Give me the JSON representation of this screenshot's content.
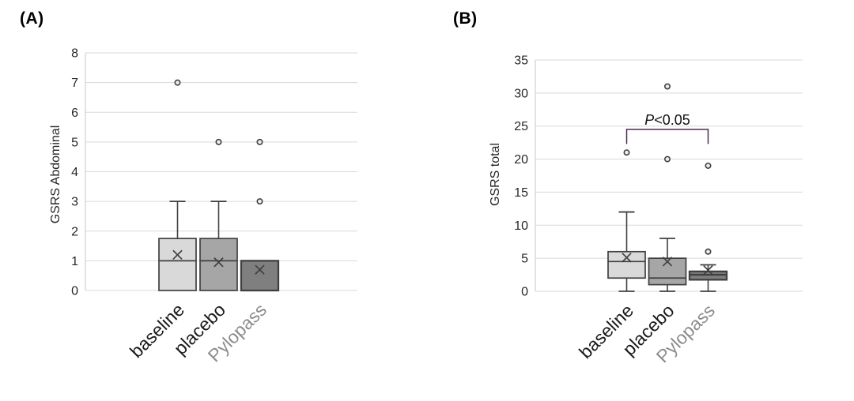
{
  "figure": {
    "background": "#ffffff",
    "description": "Two-panel box plot figure comparing GSRS scores at baseline, after placebo, and after Pylopass"
  },
  "colors": {
    "box_stroke": "#404040",
    "whisker": "#404040",
    "mean_marker": "#404040",
    "outlier_stroke": "#404040",
    "outlier_fill": "#ededed",
    "gridline": "#d9d9d9",
    "axis_line": "#d0d0d0",
    "axis_text": "#262626",
    "annotation_text": "#111111"
  },
  "chart_data": [
    {
      "type": "box",
      "panel_label": "(A)",
      "ylabel": "GSRS Abdominal",
      "ylim": [
        0,
        8
      ],
      "ytick_step": 1,
      "grid": true,
      "legend": null,
      "categories": [
        "baseline",
        "placebo",
        "Pylopass"
      ],
      "category_colors": [
        "#1a1a1a",
        "#1a1a1a",
        "#8c8c8c"
      ],
      "boxes": [
        {
          "category": "baseline",
          "fill": "#d9d9d9",
          "stroke_width": 1.7,
          "q1": 0,
          "median": 1,
          "q3": 1.75,
          "whisker_low": 0,
          "whisker_high": 3,
          "mean": 1.2,
          "outliers": [
            7
          ]
        },
        {
          "category": "placebo",
          "fill": "#a6a6a6",
          "stroke_width": 1.7,
          "q1": 0,
          "median": 1,
          "q3": 1.75,
          "whisker_low": 0,
          "whisker_high": 3,
          "mean": 0.95,
          "outliers": [
            5
          ]
        },
        {
          "category": "Pylopass",
          "fill": "#7f7f7f",
          "stroke_width": 2.3,
          "q1": 0,
          "median": null,
          "q3": 1,
          "whisker_low": 0,
          "whisker_high": 1,
          "mean": 0.7,
          "outliers": [
            5,
            3
          ]
        }
      ],
      "annotation": null
    },
    {
      "type": "box",
      "panel_label": "(B)",
      "ylabel": "GSRS total",
      "ylim": [
        0,
        35
      ],
      "ytick_step": 5,
      "grid": true,
      "legend": null,
      "categories": [
        "baseline",
        "placebo",
        "Pylopass"
      ],
      "category_colors": [
        "#1a1a1a",
        "#1a1a1a",
        "#8c8c8c"
      ],
      "boxes": [
        {
          "category": "baseline",
          "fill": "#d9d9d9",
          "stroke_width": 1.7,
          "q1": 2,
          "median": 4.5,
          "q3": 6,
          "whisker_low": 0,
          "whisker_high": 12,
          "mean": 5.1,
          "outliers": [
            21
          ]
        },
        {
          "category": "placebo",
          "fill": "#a6a6a6",
          "stroke_width": 1.7,
          "q1": 1,
          "median": 2,
          "q3": 5,
          "whisker_low": 0,
          "whisker_high": 8,
          "mean": 4.5,
          "outliers": [
            31,
            20
          ]
        },
        {
          "category": "Pylopass",
          "fill": "#7f7f7f",
          "stroke_width": 2.3,
          "q1": 1.75,
          "median": 2.5,
          "q3": 3,
          "whisker_low": 0,
          "whisker_high": 4,
          "mean": 3.2,
          "outliers": [
            19,
            6
          ]
        }
      ],
      "annotation": {
        "label": "P<0.05",
        "italic_first_char": true,
        "from_category": "baseline",
        "to_category": "Pylopass",
        "bracket_y": 24.5,
        "tick_drop_to": 22.3,
        "color": "#4e2b4e"
      }
    }
  ]
}
